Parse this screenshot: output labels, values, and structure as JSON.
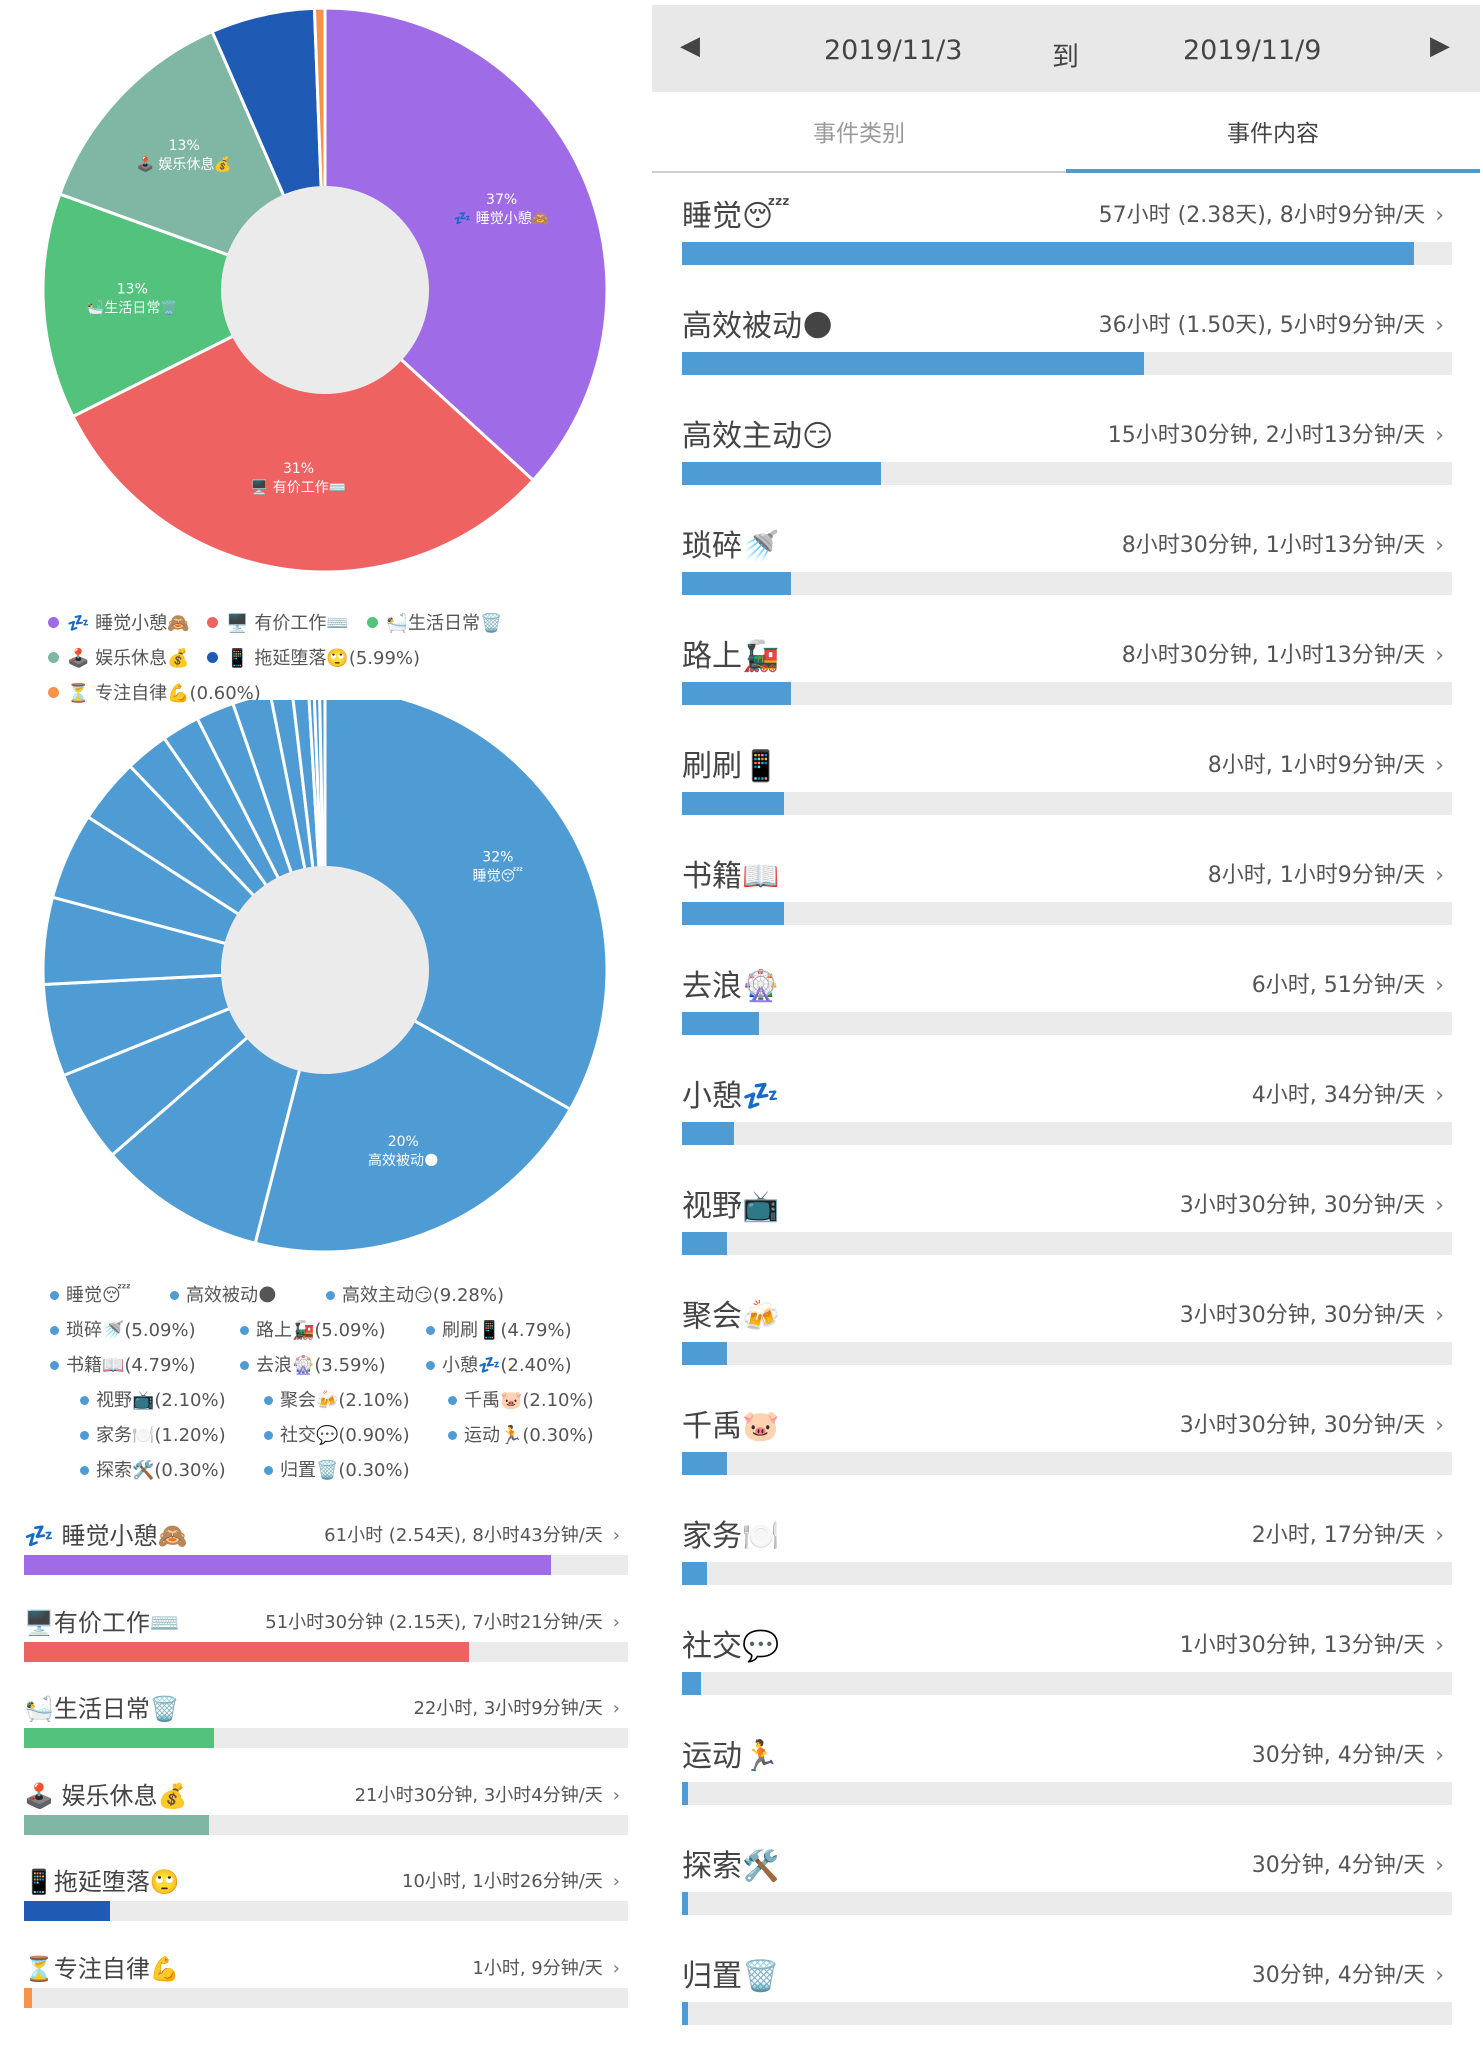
{
  "chart_data": [
    {
      "type": "pie",
      "donut": true,
      "categories": [
        "💤 睡觉小憩🙈",
        "🖥️ 有价工作⌨️",
        "🛀生活日常🗑️",
        "🕹️ 娱乐休息💰",
        "📱 拖延堕落🙄",
        "⏳ 专注自律💪"
      ],
      "values": [
        37,
        31,
        13,
        13,
        5.99,
        0.6
      ],
      "colors": [
        "#a06be6",
        "#ef6262",
        "#52c27c",
        "#7fb6a4",
        "#1f5bb4",
        "#f6924a"
      ],
      "slice_labels": [
        {
          "pct": "37%",
          "name": "💤 睡觉小憩🙈"
        },
        {
          "pct": "31%",
          "name": "🖥️ 有价工作⌨️"
        },
        {
          "pct": "13%",
          "name": "🛀生活日常🗑️"
        },
        {
          "pct": "13%",
          "name": "🕹️ 娱乐休息💰"
        },
        {
          "pct": "",
          "name": ""
        },
        {
          "pct": "",
          "name": ""
        }
      ],
      "legend_position": "bottom",
      "legend_rows": [
        [
          {
            "text": "💤 睡觉小憩🙈",
            "color": "#a06be6"
          },
          {
            "text": "🖥️ 有价工作⌨️",
            "color": "#ef6262"
          },
          {
            "text": "🛀生活日常🗑️",
            "color": "#52c27c"
          }
        ],
        [
          {
            "text": "🕹️ 娱乐休息💰",
            "color": "#7fb6a4"
          },
          {
            "text": "📱 拖延堕落🙄(5.99%)",
            "color": "#1f5bb4"
          }
        ],
        [
          {
            "text": "⏳ 专注自律💪(0.60%)",
            "color": "#f6924a"
          }
        ]
      ]
    },
    {
      "type": "pie",
      "donut": true,
      "categories": [
        "睡觉😴",
        "高效被动🌑",
        "高效主动😏",
        "琐碎🚿",
        "路上🚂",
        "刷刷📱",
        "书籍📖",
        "去浪🎡",
        "小憩💤",
        "视野📺",
        "聚会🍻",
        "千禹🐷",
        "家务🍽️",
        "社交💬",
        "运动🏃",
        "探索🛠️",
        "归置🗑️"
      ],
      "values": [
        32,
        20,
        9.28,
        5.09,
        5.09,
        4.79,
        4.79,
        3.59,
        2.4,
        2.1,
        2.1,
        2.1,
        1.2,
        0.9,
        0.3,
        0.3,
        0.3
      ],
      "color": "#4f9bd3",
      "slice_labels": [
        {
          "pct": "32%",
          "name": "睡觉😴"
        },
        {
          "pct": "20%",
          "name": "高效被动🌑"
        }
      ],
      "legend_position": "bottom",
      "legend_items": [
        "睡觉😴",
        "高效被动🌑",
        "高效主动😏(9.28%)",
        "琐碎🚿(5.09%)",
        "路上🚂(5.09%)",
        "刷刷📱(4.79%)",
        "书籍📖(4.79%)",
        "去浪🎡(3.59%)",
        "小憩💤(2.40%)",
        "视野📺(2.10%)",
        "聚会🍻(2.10%)",
        "千禹🐷(2.10%)",
        "家务🍽️(1.20%)",
        "社交💬(0.90%)",
        "运动🏃(0.30%)",
        "探索🛠️(0.30%)",
        "归置🗑️(0.30%)"
      ]
    }
  ],
  "category_rows": [
    {
      "name": "💤 睡觉小憩🙈",
      "stat": "61小时 (2.54天), 8小时43分钟/天",
      "fraction": 0.872,
      "color": "#a06be6"
    },
    {
      "name": "🖥️有价工作⌨️",
      "stat": "51小时30分钟 (2.15天), 7小时21分钟/天",
      "fraction": 0.736,
      "color": "#ef6262"
    },
    {
      "name": "🛀生活日常🗑️",
      "stat": "22小时, 3小时9分钟/天",
      "fraction": 0.315,
      "color": "#52c27c"
    },
    {
      "name": "🕹️ 娱乐休息💰",
      "stat": "21小时30分钟, 3小时4分钟/天",
      "fraction": 0.307,
      "color": "#7fb6a4"
    },
    {
      "name": "📱拖延堕落🙄",
      "stat": "10小时, 1小时26分钟/天",
      "fraction": 0.143,
      "color": "#1f5bb4"
    },
    {
      "name": "⏳专注自律💪",
      "stat": "1小时, 9分钟/天",
      "fraction": 0.014,
      "color": "#f6924a"
    }
  ],
  "date_nav": {
    "prev_icon": "◀",
    "start": "2019/11/3",
    "to": "到",
    "end": "2019/11/9",
    "next_icon": "▶"
  },
  "tabs": {
    "category": "事件类别",
    "content": "事件内容",
    "active": "事件内容",
    "active_color": "#4f9bd3"
  },
  "event_rows": [
    {
      "name": "睡觉😴",
      "stat": "57小时 (2.38天), 8小时9分钟/天",
      "fraction": 0.95
    },
    {
      "name": "高效被动🌑",
      "stat": "36小时 (1.50天), 5小时9分钟/天",
      "fraction": 0.6
    },
    {
      "name": "高效主动😏",
      "stat": "15小时30分钟, 2小时13分钟/天",
      "fraction": 0.258
    },
    {
      "name": "琐碎🚿",
      "stat": "8小时30分钟, 1小时13分钟/天",
      "fraction": 0.142
    },
    {
      "name": "路上🚂",
      "stat": "8小时30分钟, 1小时13分钟/天",
      "fraction": 0.142
    },
    {
      "name": "刷刷📱",
      "stat": "8小时, 1小时9分钟/天",
      "fraction": 0.133
    },
    {
      "name": "书籍📖",
      "stat": "8小时, 1小时9分钟/天",
      "fraction": 0.133
    },
    {
      "name": "去浪🎡",
      "stat": "6小时, 51分钟/天",
      "fraction": 0.1
    },
    {
      "name": "小憩💤",
      "stat": "4小时, 34分钟/天",
      "fraction": 0.067
    },
    {
      "name": "视野📺",
      "stat": "3小时30分钟, 30分钟/天",
      "fraction": 0.058
    },
    {
      "name": "聚会🍻",
      "stat": "3小时30分钟, 30分钟/天",
      "fraction": 0.058
    },
    {
      "name": "千禹🐷",
      "stat": "3小时30分钟, 30分钟/天",
      "fraction": 0.058
    },
    {
      "name": "家务🍽️",
      "stat": "2小时, 17分钟/天",
      "fraction": 0.033
    },
    {
      "name": "社交💬",
      "stat": "1小时30分钟, 13分钟/天",
      "fraction": 0.025
    },
    {
      "name": "运动🏃",
      "stat": "30分钟, 4分钟/天",
      "fraction": 0.008
    },
    {
      "name": "探索🛠️",
      "stat": "30分钟, 4分钟/天",
      "fraction": 0.008
    },
    {
      "name": "归置🗑️",
      "stat": "30分钟, 4分钟/天",
      "fraction": 0.008
    }
  ],
  "chevron_icon": "›"
}
